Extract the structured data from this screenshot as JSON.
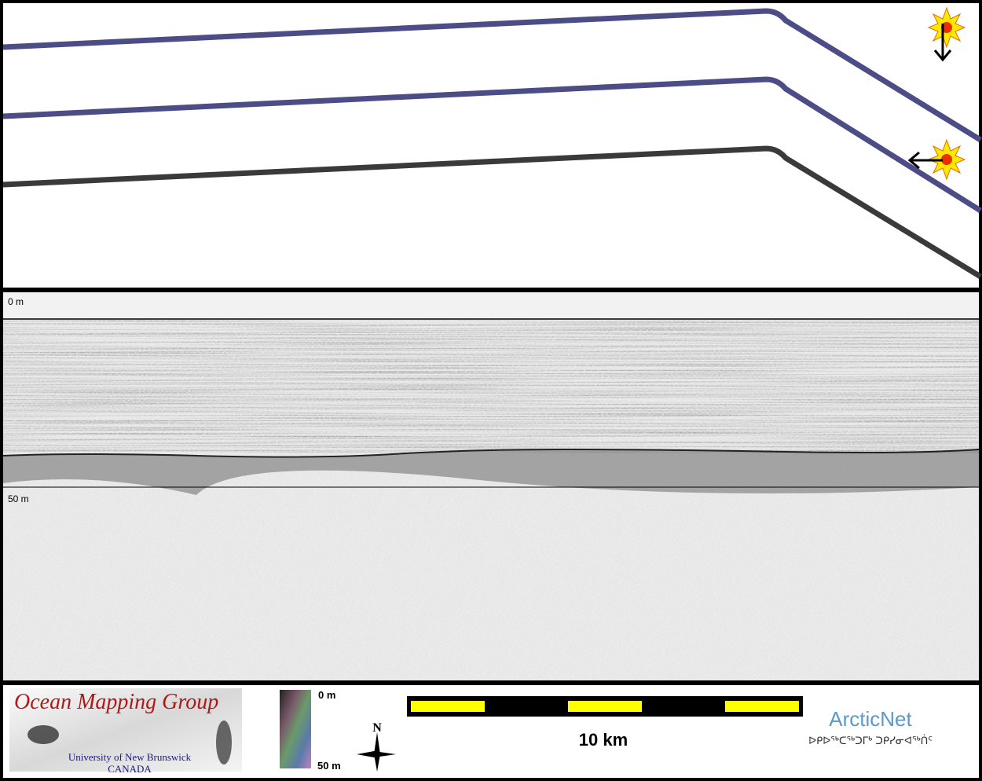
{
  "profile": {
    "top_depth_label": "0 m",
    "mid_depth_label": "50 m"
  },
  "logo": {
    "title": "Ocean Mapping Group",
    "university": "University of New Brunswick",
    "country": "CANADA"
  },
  "colorbar": {
    "top_label": "0 m",
    "bottom_label": "50 m"
  },
  "north_arrow": {
    "label": "N"
  },
  "scale_bar": {
    "label": "10 km"
  },
  "arcticnet": {
    "name": "ArcticNet",
    "tagline": "ᐅᑭᐅᖅᑕᖅᑐᒥᒃ ᑐᑭᓯᓂᐊᖅᑏᑦ"
  }
}
